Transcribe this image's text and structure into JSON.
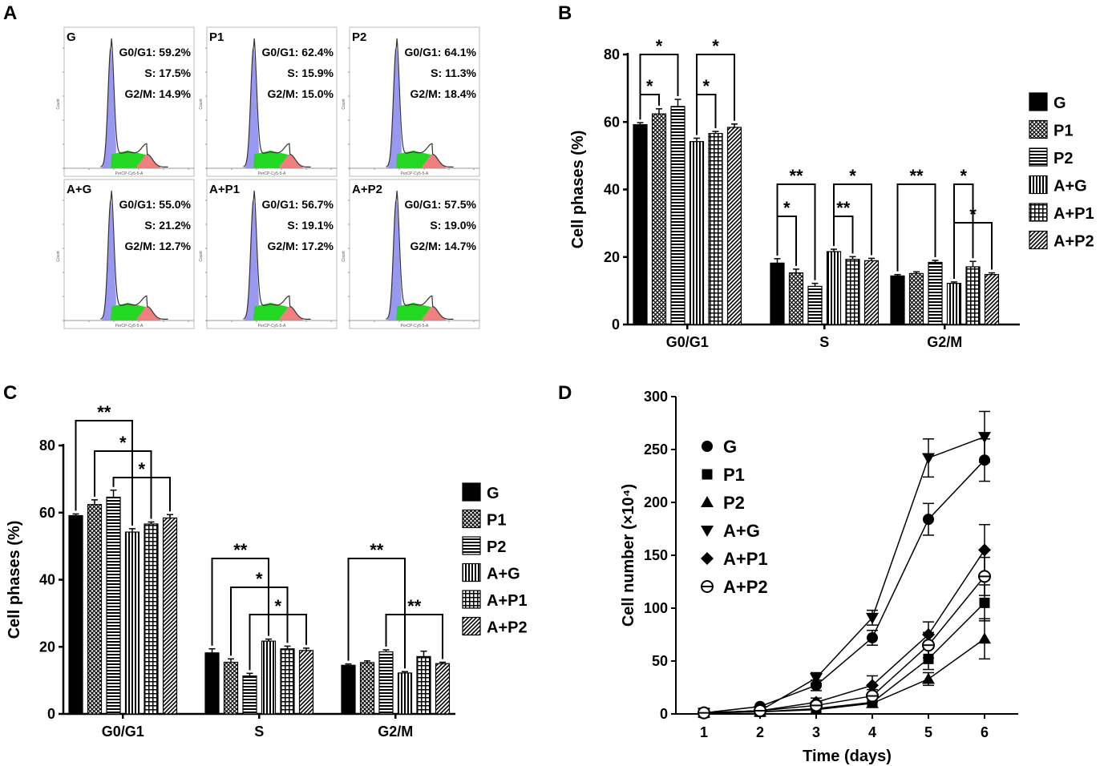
{
  "panels": {
    "a": "A",
    "b": "B",
    "c": "C",
    "d": "D"
  },
  "groups": [
    "G",
    "P1",
    "P2",
    "A+G",
    "A+P1",
    "A+P2"
  ],
  "histograms": [
    {
      "label": "G",
      "g0g1": "G0/G1: 59.2%",
      "s": "S: 17.5%",
      "g2m": "G2/M: 14.9%"
    },
    {
      "label": "P1",
      "g0g1": "G0/G1: 62.4%",
      "s": "S: 15.9%",
      "g2m": "G2/M: 15.0%"
    },
    {
      "label": "P2",
      "g0g1": "G0/G1: 64.1%",
      "s": "S: 11.3%",
      "g2m": "G2/M: 18.4%"
    },
    {
      "label": "A+G",
      "g0g1": "G0/G1: 55.0%",
      "s": "S: 21.2%",
      "g2m": "G2/M: 12.7%"
    },
    {
      "label": "A+P1",
      "g0g1": "G0/G1: 56.7%",
      "s": "S: 19.1%",
      "g2m": "G2/M: 17.2%"
    },
    {
      "label": "A+P2",
      "g0g1": "G0/G1: 57.5%",
      "s": "S: 19.0%",
      "g2m": "G2/M: 14.7%"
    }
  ],
  "histogram_axis": {
    "xlabel": "PerCP-Cy5-5-A",
    "ylabel": "Count"
  },
  "colors": {
    "g0g1": "#8d8df0",
    "s": "#22d822",
    "g2m": "#f07f7f"
  },
  "chart_data": [
    {
      "panel": "B",
      "type": "bar",
      "categories": [
        "G0/G1",
        "S",
        "G2/M"
      ],
      "series": [
        {
          "name": "G",
          "values": [
            59.2,
            18.2,
            14.4
          ],
          "errors": [
            0.6,
            1.3,
            0.4
          ]
        },
        {
          "name": "P1",
          "values": [
            62.4,
            15.3,
            15.1
          ],
          "errors": [
            1.5,
            1.1,
            0.5
          ]
        },
        {
          "name": "P2",
          "values": [
            64.6,
            11.3,
            18.4
          ],
          "errors": [
            2.1,
            0.9,
            0.6
          ]
        },
        {
          "name": "A+G",
          "values": [
            54.2,
            21.6,
            12.2
          ],
          "errors": [
            1.0,
            0.7,
            0.4
          ]
        },
        {
          "name": "A+P1",
          "values": [
            56.6,
            19.3,
            17.1
          ],
          "errors": [
            0.6,
            0.8,
            1.6
          ]
        },
        {
          "name": "A+P2",
          "values": [
            58.4,
            18.9,
            14.8
          ],
          "errors": [
            1.0,
            0.7,
            0.5
          ]
        }
      ],
      "ylabel": "Cell phases (%)",
      "ylim": [
        0,
        80
      ],
      "yticks": [
        0,
        20,
        40,
        60,
        80
      ],
      "significance": [
        {
          "category": "G0/G1",
          "from": "G",
          "to": "P1",
          "label": "*"
        },
        {
          "category": "G0/G1",
          "from": "G",
          "to": "P2",
          "label": "*"
        },
        {
          "category": "G0/G1",
          "from": "A+G",
          "to": "A+P1",
          "label": "*"
        },
        {
          "category": "G0/G1",
          "from": "A+G",
          "to": "A+P2",
          "label": "*"
        },
        {
          "category": "S",
          "from": "G",
          "to": "P1",
          "label": "*"
        },
        {
          "category": "S",
          "from": "G",
          "to": "P2",
          "label": "**"
        },
        {
          "category": "S",
          "from": "A+G",
          "to": "A+P1",
          "label": "**"
        },
        {
          "category": "S",
          "from": "A+G",
          "to": "A+P2",
          "label": "*"
        },
        {
          "category": "G2/M",
          "from": "G",
          "to": "P2",
          "label": "**"
        },
        {
          "category": "G2/M",
          "from": "A+G",
          "to": "A+P1",
          "label": "*"
        },
        {
          "category": "G2/M",
          "from": "A+G",
          "to": "A+P2",
          "label": "*"
        }
      ]
    },
    {
      "panel": "C",
      "type": "bar",
      "categories": [
        "G0/G1",
        "S",
        "G2/M"
      ],
      "series": [
        {
          "name": "G",
          "values": [
            59.1,
            18.2,
            14.5
          ],
          "errors": [
            0.5,
            1.2,
            0.4
          ]
        },
        {
          "name": "P1",
          "values": [
            62.4,
            15.4,
            15.3
          ],
          "errors": [
            1.4,
            1.0,
            0.5
          ]
        },
        {
          "name": "P2",
          "values": [
            64.6,
            11.3,
            18.5
          ],
          "errors": [
            2.1,
            0.8,
            0.6
          ]
        },
        {
          "name": "A+G",
          "values": [
            54.2,
            21.7,
            12.2
          ],
          "errors": [
            1.0,
            0.6,
            0.4
          ]
        },
        {
          "name": "A+P1",
          "values": [
            56.6,
            19.4,
            17.1
          ],
          "errors": [
            0.6,
            0.8,
            1.6
          ]
        },
        {
          "name": "A+P2",
          "values": [
            58.4,
            18.9,
            15.0
          ],
          "errors": [
            1.0,
            0.7,
            0.4
          ]
        }
      ],
      "ylabel": "Cell phases (%)",
      "ylim": [
        0,
        80
      ],
      "yticks": [
        0,
        20,
        40,
        60,
        80
      ],
      "significance": [
        {
          "category": "G0/G1",
          "from": "G",
          "to": "A+G",
          "label": "**"
        },
        {
          "category": "G0/G1",
          "from": "P1",
          "to": "A+P1",
          "label": "*"
        },
        {
          "category": "G0/G1",
          "from": "P2",
          "to": "A+P2",
          "label": "*"
        },
        {
          "category": "S",
          "from": "G",
          "to": "A+G",
          "label": "**"
        },
        {
          "category": "S",
          "from": "P1",
          "to": "A+P1",
          "label": "*"
        },
        {
          "category": "S",
          "from": "P2",
          "to": "A+P2",
          "label": "*"
        },
        {
          "category": "G2/M",
          "from": "G",
          "to": "A+G",
          "label": "**"
        },
        {
          "category": "G2/M",
          "from": "P2",
          "to": "A+P2",
          "label": "**"
        }
      ]
    },
    {
      "panel": "D",
      "type": "line",
      "x": [
        1,
        2,
        3,
        4,
        5,
        6
      ],
      "series": [
        {
          "name": "G",
          "marker": "circle",
          "values": [
            1,
            7,
            27,
            72,
            184,
            240
          ],
          "errors": [
            2,
            2,
            5,
            7,
            15,
            20
          ]
        },
        {
          "name": "P1",
          "marker": "square",
          "values": [
            1,
            2,
            5,
            11,
            52,
            105
          ],
          "errors": [
            1,
            1,
            2,
            3,
            10,
            17
          ]
        },
        {
          "name": "P2",
          "marker": "triangle-up",
          "values": [
            1,
            2,
            4,
            10,
            33,
            71
          ],
          "errors": [
            1,
            1,
            2,
            3,
            6,
            19
          ]
        },
        {
          "name": "A+G",
          "marker": "triangle-down",
          "values": [
            1,
            3,
            34,
            91,
            242,
            262
          ],
          "errors": [
            2,
            2,
            5,
            7,
            18,
            24
          ]
        },
        {
          "name": "A+P1",
          "marker": "diamond",
          "values": [
            1,
            3,
            11,
            27,
            75,
            155
          ],
          "errors": [
            1,
            1,
            4,
            9,
            12,
            24
          ]
        },
        {
          "name": "A+P2",
          "marker": "open-circle",
          "values": [
            1,
            3,
            8,
            17,
            65,
            130
          ],
          "errors": [
            1,
            1,
            3,
            6,
            12,
            18
          ]
        }
      ],
      "xlabel": "Time (days)",
      "ylabel": "Cell number (×10⁴)",
      "xlim": [
        0.5,
        6.6
      ],
      "ylim": [
        0,
        300
      ],
      "xticks": [
        1,
        2,
        3,
        4,
        5,
        6
      ],
      "yticks": [
        0,
        50,
        100,
        150,
        200,
        250,
        300
      ]
    }
  ]
}
